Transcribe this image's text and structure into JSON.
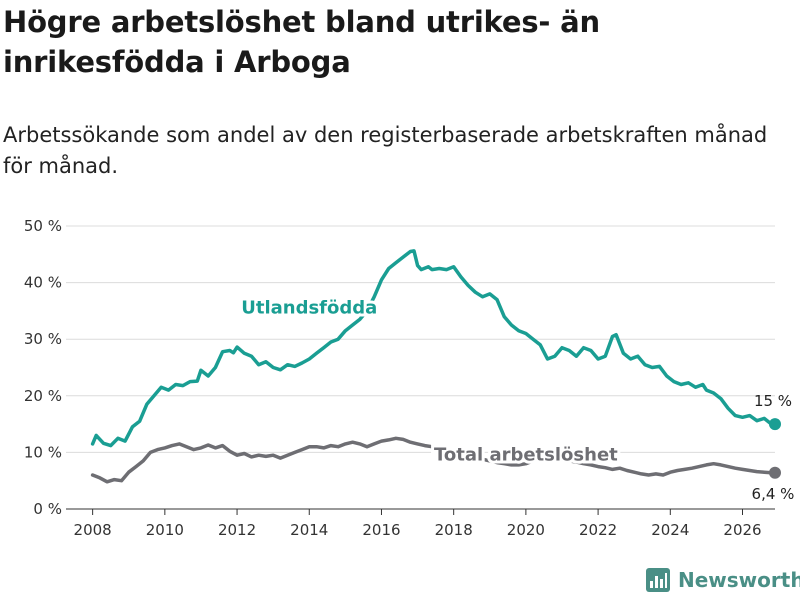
{
  "title": "Högre arbetslöshet bland utrikes- än inrikesfödda i Arboga",
  "subtitle": "Arbetssökande som andel av den registerbaserade arbetskraften månad för månad.",
  "brand": {
    "name": "Newsworthy",
    "icon": "bar-chart-logo-icon"
  },
  "chart_data": {
    "type": "line",
    "xlim": [
      2007.65,
      2026.9
    ],
    "ylim": [
      0,
      50
    ],
    "x_ticks": [
      2008,
      2010,
      2012,
      2014,
      2016,
      2018,
      2020,
      2022,
      2024,
      2026
    ],
    "x_tick_labels": [
      "2008",
      "2010",
      "2012",
      "2014",
      "2016",
      "2018",
      "2020",
      "2022",
      "2024",
      "2026"
    ],
    "y_ticks": [
      0,
      10,
      20,
      30,
      40,
      50
    ],
    "y_tick_labels": [
      "0 %",
      "10 %",
      "20 %",
      "30 %",
      "40 %",
      "50 %"
    ],
    "grid": "horizontal",
    "series": [
      {
        "name": "Utlandsfödda",
        "color": "#1a9e93",
        "end_label": "15 %",
        "points": [
          [
            2008.0,
            11.5
          ],
          [
            2008.1,
            13.0
          ],
          [
            2008.3,
            11.6
          ],
          [
            2008.5,
            11.2
          ],
          [
            2008.7,
            12.5
          ],
          [
            2008.9,
            12.0
          ],
          [
            2009.1,
            14.5
          ],
          [
            2009.3,
            15.5
          ],
          [
            2009.5,
            18.5
          ],
          [
            2009.7,
            20.0
          ],
          [
            2009.9,
            21.5
          ],
          [
            2010.1,
            21.0
          ],
          [
            2010.3,
            22.0
          ],
          [
            2010.5,
            21.8
          ],
          [
            2010.7,
            22.5
          ],
          [
            2010.9,
            22.6
          ],
          [
            2011.0,
            24.5
          ],
          [
            2011.2,
            23.5
          ],
          [
            2011.4,
            25.0
          ],
          [
            2011.6,
            27.8
          ],
          [
            2011.8,
            28.0
          ],
          [
            2011.9,
            27.6
          ],
          [
            2012.0,
            28.6
          ],
          [
            2012.2,
            27.5
          ],
          [
            2012.4,
            27.0
          ],
          [
            2012.6,
            25.5
          ],
          [
            2012.8,
            26.0
          ],
          [
            2013.0,
            25.0
          ],
          [
            2013.2,
            24.6
          ],
          [
            2013.4,
            25.5
          ],
          [
            2013.6,
            25.2
          ],
          [
            2013.8,
            25.8
          ],
          [
            2014.0,
            26.5
          ],
          [
            2014.2,
            27.5
          ],
          [
            2014.4,
            28.5
          ],
          [
            2014.6,
            29.5
          ],
          [
            2014.8,
            30.0
          ],
          [
            2015.0,
            31.5
          ],
          [
            2015.2,
            32.5
          ],
          [
            2015.4,
            33.5
          ],
          [
            2015.6,
            35.0
          ],
          [
            2015.8,
            37.5
          ],
          [
            2016.0,
            40.5
          ],
          [
            2016.2,
            42.5
          ],
          [
            2016.4,
            43.5
          ],
          [
            2016.6,
            44.5
          ],
          [
            2016.8,
            45.5
          ],
          [
            2016.9,
            45.6
          ],
          [
            2017.0,
            43.0
          ],
          [
            2017.1,
            42.3
          ],
          [
            2017.3,
            42.8
          ],
          [
            2017.4,
            42.3
          ],
          [
            2017.6,
            42.5
          ],
          [
            2017.8,
            42.3
          ],
          [
            2018.0,
            42.8
          ],
          [
            2018.2,
            41.0
          ],
          [
            2018.4,
            39.5
          ],
          [
            2018.6,
            38.3
          ],
          [
            2018.8,
            37.5
          ],
          [
            2019.0,
            38.0
          ],
          [
            2019.2,
            37.0
          ],
          [
            2019.4,
            34.0
          ],
          [
            2019.6,
            32.5
          ],
          [
            2019.8,
            31.5
          ],
          [
            2020.0,
            31.0
          ],
          [
            2020.2,
            30.0
          ],
          [
            2020.4,
            29.0
          ],
          [
            2020.6,
            26.5
          ],
          [
            2020.8,
            27.0
          ],
          [
            2021.0,
            28.5
          ],
          [
            2021.2,
            28.0
          ],
          [
            2021.4,
            27.0
          ],
          [
            2021.6,
            28.5
          ],
          [
            2021.8,
            28.0
          ],
          [
            2022.0,
            26.5
          ],
          [
            2022.2,
            27.0
          ],
          [
            2022.4,
            30.5
          ],
          [
            2022.5,
            30.8
          ],
          [
            2022.7,
            27.5
          ],
          [
            2022.9,
            26.5
          ],
          [
            2023.1,
            27.0
          ],
          [
            2023.3,
            25.5
          ],
          [
            2023.5,
            25.0
          ],
          [
            2023.7,
            25.2
          ],
          [
            2023.9,
            23.5
          ],
          [
            2024.1,
            22.5
          ],
          [
            2024.3,
            22.0
          ],
          [
            2024.5,
            22.3
          ],
          [
            2024.7,
            21.5
          ],
          [
            2024.9,
            22.0
          ],
          [
            2025.0,
            21.0
          ],
          [
            2025.2,
            20.5
          ],
          [
            2025.4,
            19.5
          ],
          [
            2025.6,
            17.8
          ],
          [
            2025.8,
            16.5
          ],
          [
            2026.0,
            16.2
          ],
          [
            2026.2,
            16.5
          ],
          [
            2026.4,
            15.6
          ],
          [
            2026.6,
            16.0
          ],
          [
            2026.7,
            15.5
          ],
          [
            2026.8,
            15.0
          ],
          [
            2026.85,
            15.5
          ],
          [
            2026.9,
            15.0
          ]
        ]
      },
      {
        "name": "Total arbetslöshet",
        "color": "#6e6e73",
        "end_label": "6,4 %",
        "points": [
          [
            2008.0,
            6.0
          ],
          [
            2008.2,
            5.5
          ],
          [
            2008.4,
            4.8
          ],
          [
            2008.6,
            5.2
          ],
          [
            2008.8,
            5.0
          ],
          [
            2009.0,
            6.5
          ],
          [
            2009.2,
            7.5
          ],
          [
            2009.4,
            8.5
          ],
          [
            2009.6,
            10.0
          ],
          [
            2009.8,
            10.5
          ],
          [
            2010.0,
            10.8
          ],
          [
            2010.2,
            11.2
          ],
          [
            2010.4,
            11.5
          ],
          [
            2010.6,
            11.0
          ],
          [
            2010.8,
            10.5
          ],
          [
            2011.0,
            10.8
          ],
          [
            2011.2,
            11.3
          ],
          [
            2011.4,
            10.8
          ],
          [
            2011.6,
            11.2
          ],
          [
            2011.8,
            10.2
          ],
          [
            2012.0,
            9.5
          ],
          [
            2012.2,
            9.8
          ],
          [
            2012.4,
            9.2
          ],
          [
            2012.6,
            9.5
          ],
          [
            2012.8,
            9.3
          ],
          [
            2013.0,
            9.5
          ],
          [
            2013.2,
            9.0
          ],
          [
            2013.4,
            9.5
          ],
          [
            2013.6,
            10.0
          ],
          [
            2013.8,
            10.5
          ],
          [
            2014.0,
            11.0
          ],
          [
            2014.2,
            11.0
          ],
          [
            2014.4,
            10.8
          ],
          [
            2014.6,
            11.2
          ],
          [
            2014.8,
            11.0
          ],
          [
            2015.0,
            11.5
          ],
          [
            2015.2,
            11.8
          ],
          [
            2015.4,
            11.5
          ],
          [
            2015.6,
            11.0
          ],
          [
            2015.8,
            11.5
          ],
          [
            2016.0,
            12.0
          ],
          [
            2016.2,
            12.2
          ],
          [
            2016.4,
            12.5
          ],
          [
            2016.6,
            12.3
          ],
          [
            2016.8,
            11.8
          ],
          [
            2017.0,
            11.5
          ],
          [
            2017.2,
            11.2
          ],
          [
            2017.4,
            11.0
          ],
          [
            2017.6,
            10.8
          ],
          [
            2017.8,
            10.5
          ],
          [
            2018.0,
            10.0
          ],
          [
            2018.2,
            9.8
          ],
          [
            2018.4,
            9.3
          ],
          [
            2018.6,
            9.0
          ],
          [
            2018.8,
            8.8
          ],
          [
            2019.0,
            8.5
          ],
          [
            2019.2,
            8.2
          ],
          [
            2019.4,
            8.0
          ],
          [
            2019.6,
            7.8
          ],
          [
            2019.8,
            7.8
          ],
          [
            2020.0,
            8.0
          ],
          [
            2020.2,
            8.5
          ],
          [
            2020.4,
            9.0
          ],
          [
            2020.6,
            9.3
          ],
          [
            2020.8,
            9.0
          ],
          [
            2021.0,
            8.8
          ],
          [
            2021.2,
            8.5
          ],
          [
            2021.4,
            8.3
          ],
          [
            2021.6,
            8.0
          ],
          [
            2021.8,
            7.8
          ],
          [
            2022.0,
            7.5
          ],
          [
            2022.2,
            7.3
          ],
          [
            2022.4,
            7.0
          ],
          [
            2022.6,
            7.2
          ],
          [
            2022.8,
            6.8
          ],
          [
            2023.0,
            6.5
          ],
          [
            2023.2,
            6.2
          ],
          [
            2023.4,
            6.0
          ],
          [
            2023.6,
            6.2
          ],
          [
            2023.8,
            6.0
          ],
          [
            2024.0,
            6.5
          ],
          [
            2024.2,
            6.8
          ],
          [
            2024.4,
            7.0
          ],
          [
            2024.6,
            7.2
          ],
          [
            2024.8,
            7.5
          ],
          [
            2025.0,
            7.8
          ],
          [
            2025.2,
            8.0
          ],
          [
            2025.4,
            7.8
          ],
          [
            2025.6,
            7.5
          ],
          [
            2025.8,
            7.2
          ],
          [
            2026.0,
            7.0
          ],
          [
            2026.2,
            6.8
          ],
          [
            2026.4,
            6.6
          ],
          [
            2026.6,
            6.5
          ],
          [
            2026.8,
            6.4
          ],
          [
            2026.9,
            6.4
          ]
        ]
      }
    ]
  }
}
